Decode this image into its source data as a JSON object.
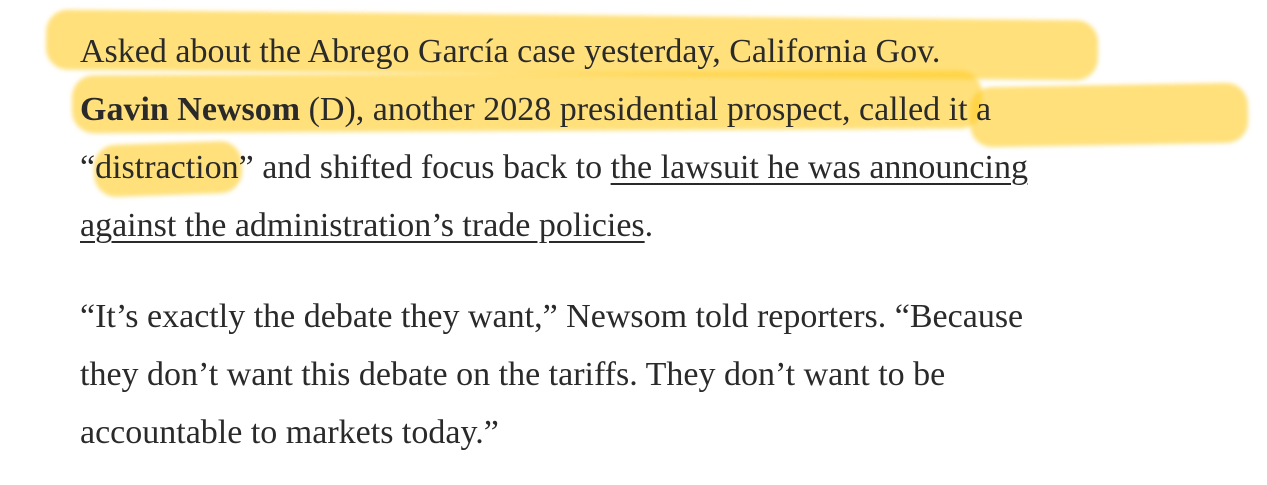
{
  "article": {
    "paragraph_1": {
      "line_1": "Asked about the Abrego García case yesterday, California Gov.",
      "line_2_bold": "Gavin Newsom",
      "line_2_rest": " (D), another 2028 presidential prospect, called it a",
      "line_3_text": "“distraction” and shifted focus back to ",
      "link_part_1": "the lawsuit he was announcing",
      "link_part_2": "against the administration’s trade policies",
      "line_4_end": "."
    },
    "paragraph_2": {
      "line_1": "“It’s exactly the debate they want,” Newsom told reporters. “Because",
      "line_2": "they don’t want this debate on the tariffs. They don’t want to be",
      "line_3": "accountable to markets today.”"
    }
  },
  "colors": {
    "text": "#2a2a2a",
    "highlighter": "#ffcd28",
    "background": "#ffffff"
  }
}
